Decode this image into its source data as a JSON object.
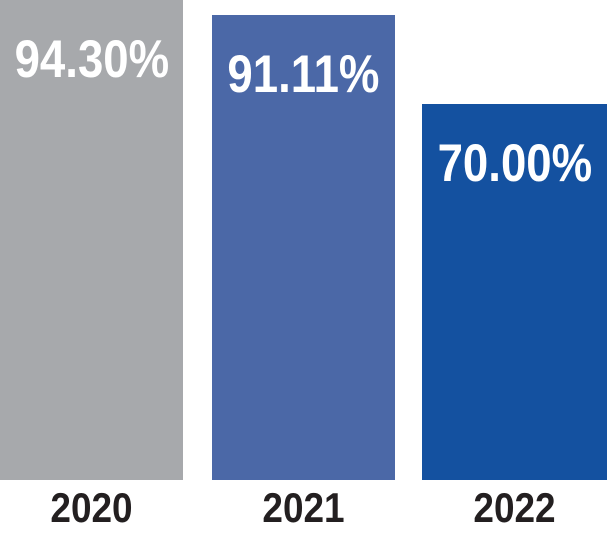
{
  "chart_data": {
    "type": "bar",
    "title": "",
    "xlabel": "",
    "ylabel": "",
    "categories": [
      "2020",
      "2021",
      "2022"
    ],
    "values": [
      94.3,
      91.11,
      70.0
    ],
    "value_labels": [
      "94.30%",
      "91.11%",
      "70.00%"
    ],
    "ylim": [
      0,
      100
    ],
    "grid": false,
    "legend": "none",
    "axes_visible": false,
    "value_label_position": "inside-top",
    "bar_colors": [
      "#a7a9ac",
      "#4b68a7",
      "#1451a0"
    ],
    "value_label_color": "#ffffff",
    "category_label_color": "#231f20",
    "background_color": "#ffffff"
  }
}
